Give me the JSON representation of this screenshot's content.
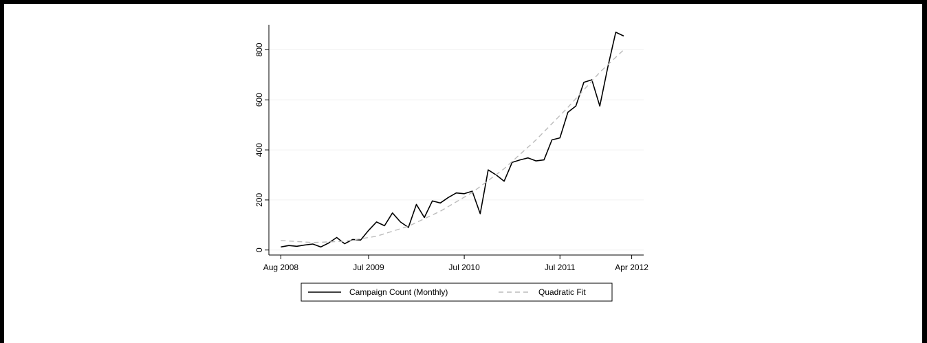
{
  "chart_data": {
    "type": "line",
    "title": "",
    "xlabel": "",
    "ylabel": "",
    "x_ticks": [
      "Aug 2008",
      "Jul 2009",
      "Jul 2010",
      "Jul 2011",
      "Apr 2012"
    ],
    "x_tick_months": [
      0,
      11,
      23,
      35,
      44
    ],
    "y_ticks": [
      0,
      200,
      400,
      600,
      800
    ],
    "ylim": [
      -20,
      900
    ],
    "xlim": [
      -1.5,
      45.5
    ],
    "grid": true,
    "legend_position": "bottom",
    "series": [
      {
        "name": "Campaign Count (Monthly)",
        "style": "solid",
        "color": "#000000",
        "x": [
          0,
          1,
          2,
          3,
          4,
          5,
          6,
          7,
          8,
          9,
          10,
          11,
          12,
          13,
          14,
          15,
          16,
          17,
          18,
          19,
          20,
          21,
          22,
          23,
          24,
          25,
          26,
          27,
          28,
          29,
          30,
          31,
          32,
          33,
          34,
          35,
          36,
          37,
          38,
          39,
          40,
          41,
          42,
          43,
          44
        ],
        "values": [
          12,
          18,
          15,
          20,
          24,
          12,
          28,
          50,
          25,
          42,
          40,
          78,
          112,
          97,
          148,
          112,
          90,
          182,
          130,
          196,
          188,
          210,
          228,
          225,
          235,
          145,
          320,
          300,
          275,
          350,
          360,
          368,
          356,
          360,
          440,
          448,
          550,
          575,
          670,
          680,
          575,
          730,
          870,
          855,
          null
        ]
      },
      {
        "name": "Quadratic Fit",
        "style": "dashed",
        "color": "#bbbbbb",
        "x": [
          0,
          4,
          8,
          12,
          16,
          20,
          24,
          28,
          32,
          36,
          40,
          43
        ],
        "values": [
          38,
          30,
          35,
          55,
          95,
          155,
          230,
          325,
          440,
          570,
          710,
          800
        ]
      }
    ]
  }
}
